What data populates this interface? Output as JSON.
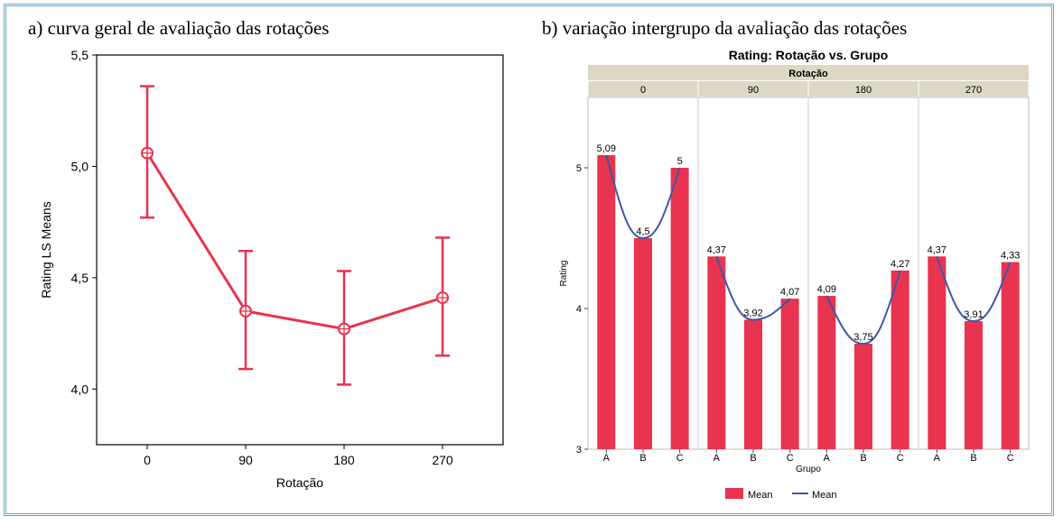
{
  "colors": {
    "accent": "#e8344e",
    "line": "#3f56a8",
    "frame": "#6aa6c6",
    "strip": "#dcd8c4"
  },
  "chart_data": [
    {
      "type": "line",
      "title": "a) curva geral de avaliação das rotações",
      "xlabel": "Rotação",
      "ylabel": "Rating LS Means",
      "categories": [
        "0",
        "90",
        "180",
        "270"
      ],
      "ylim": [
        3.75,
        5.5
      ],
      "yticks": [
        "4,0",
        "4,5",
        "5,0",
        "5,5"
      ],
      "ytick_values": [
        4.0,
        4.5,
        5.0,
        5.5
      ],
      "grid": false,
      "series": [
        {
          "values": [
            5.06,
            4.35,
            4.27,
            4.41
          ],
          "lower": [
            4.77,
            4.09,
            4.02,
            4.15
          ],
          "upper": [
            5.36,
            4.62,
            4.53,
            4.68
          ]
        }
      ]
    },
    {
      "type": "bar",
      "caption": "b) variação intergrupo da avaliação das rotações",
      "title": "Rating: Rotação vs. Grupo",
      "group_label": "Rotação",
      "xlabel": "Grupo",
      "ylabel": "Rating",
      "ylim": [
        3,
        5.5
      ],
      "yticks": [
        "3",
        "4",
        "5"
      ],
      "ytick_values": [
        3,
        4,
        5
      ],
      "legend": {
        "placement": "bottom",
        "entries": [
          "Mean",
          "Mean"
        ]
      },
      "panels": [
        {
          "label": "0",
          "categories": [
            "A",
            "B",
            "C"
          ],
          "values": [
            5.09,
            4.5,
            5.0
          ],
          "labels": [
            "5,09",
            "4,5",
            "5"
          ]
        },
        {
          "label": "90",
          "categories": [
            "A",
            "B",
            "C"
          ],
          "values": [
            4.37,
            3.92,
            4.07
          ],
          "labels": [
            "4,37",
            "3,92",
            "4,07"
          ]
        },
        {
          "label": "180",
          "categories": [
            "A",
            "B",
            "C"
          ],
          "values": [
            4.09,
            3.75,
            4.27
          ],
          "labels": [
            "4,09",
            "3,75",
            "4,27"
          ]
        },
        {
          "label": "270",
          "categories": [
            "A",
            "B",
            "C"
          ],
          "values": [
            4.37,
            3.91,
            4.33
          ],
          "labels": [
            "4,37",
            "3,91",
            "4,33"
          ]
        }
      ]
    }
  ]
}
